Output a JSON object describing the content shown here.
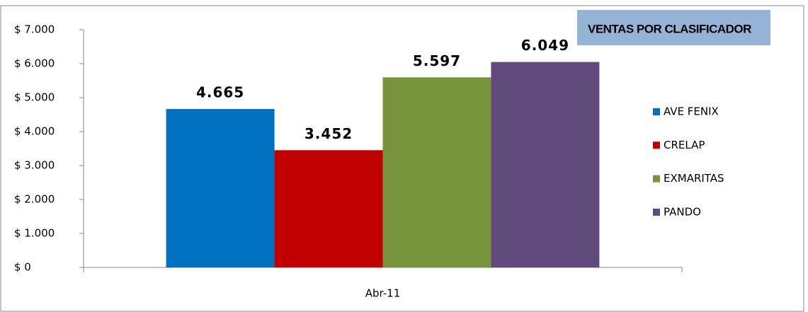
{
  "chart_data": {
    "type": "bar",
    "title": "VENTAS POR CLASIFICADOR",
    "categories": [
      "Abr-11"
    ],
    "series": [
      {
        "name": "AVE FENIX",
        "color": "#0070c0",
        "values": [
          4665
        ],
        "value_labels": [
          "4.665"
        ]
      },
      {
        "name": "CRELAP",
        "color": "#c00000",
        "values": [
          3452
        ],
        "value_labels": [
          "3.452"
        ]
      },
      {
        "name": "EXMARITAS",
        "color": "#77933c",
        "values": [
          5597
        ],
        "value_labels": [
          "5.597"
        ]
      },
      {
        "name": "PANDO",
        "color": "#604a7b",
        "values": [
          6049
        ],
        "value_labels": [
          "6.049"
        ]
      }
    ],
    "ylim": [
      0,
      7000
    ],
    "yticks": [
      {
        "value": 0,
        "label": "$ 0"
      },
      {
        "value": 1000,
        "label": "$ 1.000"
      },
      {
        "value": 2000,
        "label": "$ 2.000"
      },
      {
        "value": 3000,
        "label": "$ 3.000"
      },
      {
        "value": 4000,
        "label": "$ 4.000"
      },
      {
        "value": 5000,
        "label": "$ 5.000"
      },
      {
        "value": 6000,
        "label": "$ 6.000"
      },
      {
        "value": 7000,
        "label": "$ 7.000"
      }
    ],
    "grid": false,
    "legend": "right"
  }
}
